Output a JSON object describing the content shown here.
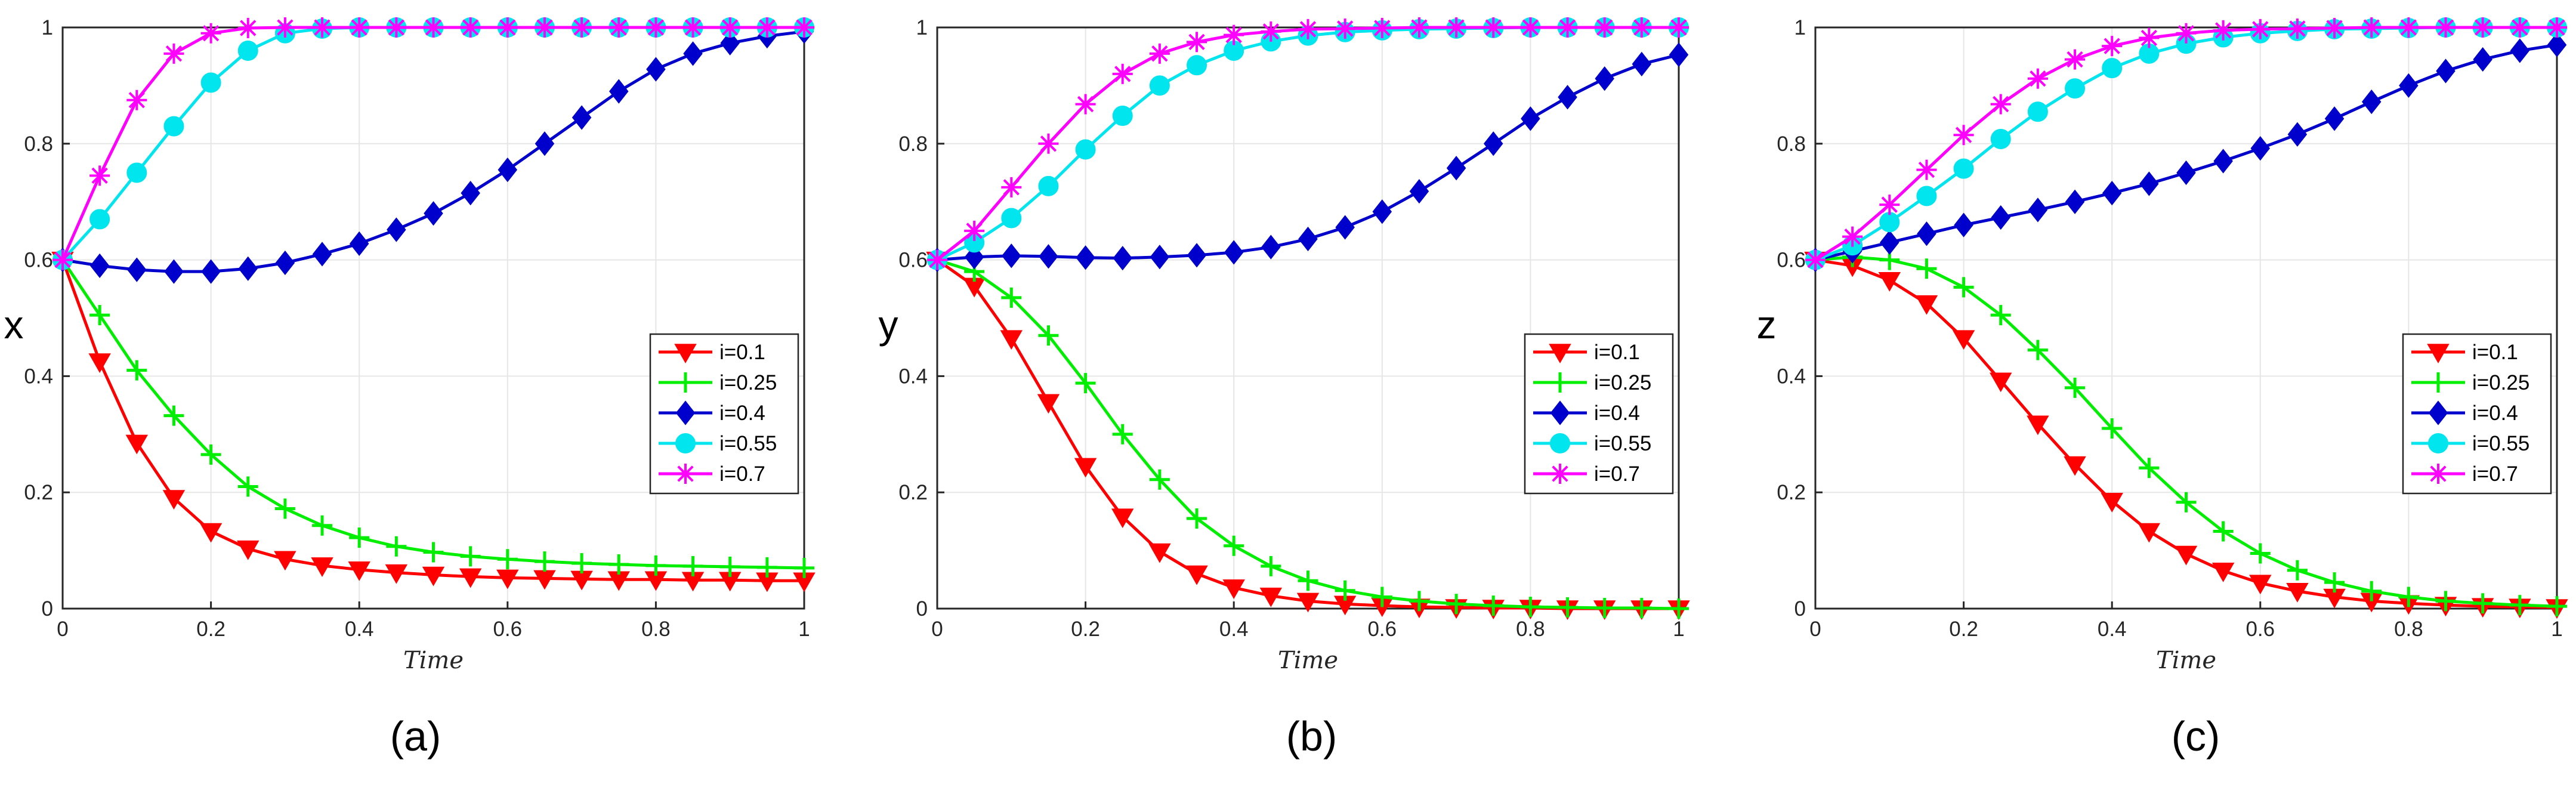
{
  "figure_title": "",
  "colors": {
    "i=0.1": "#ff0000",
    "i=0.25": "#00ee00",
    "i=0.4": "#0000cc",
    "i=0.55": "#00e5ee",
    "i=0.7": "#ff00ff"
  },
  "chart_data": [
    {
      "type": "line",
      "caption": "(a)",
      "title": "",
      "xlabel": "Time",
      "ylabel": "x",
      "xlim": [
        0,
        1
      ],
      "ylim": [
        0,
        1
      ],
      "xticks": [
        "0",
        "0.2",
        "0.4",
        "0.6",
        "0.8",
        "1"
      ],
      "yticks": [
        "0",
        "0.2",
        "0.4",
        "0.6",
        "0.8",
        "1"
      ],
      "grid": true,
      "legend_position": "center-right",
      "x": [
        0,
        0.05,
        0.1,
        0.15,
        0.2,
        0.25,
        0.3,
        0.35,
        0.4,
        0.45,
        0.5,
        0.55,
        0.6,
        0.65,
        0.7,
        0.75,
        0.8,
        0.85,
        0.9,
        0.95,
        1.0
      ],
      "series": [
        {
          "name": "i=0.1",
          "marker": "triangle-down",
          "values": [
            0.6,
            0.425,
            0.285,
            0.19,
            0.133,
            0.103,
            0.085,
            0.074,
            0.067,
            0.062,
            0.058,
            0.055,
            0.053,
            0.052,
            0.051,
            0.05,
            0.05,
            0.049,
            0.049,
            0.048,
            0.048
          ]
        },
        {
          "name": "i=0.25",
          "marker": "plus",
          "values": [
            0.6,
            0.505,
            0.41,
            0.332,
            0.265,
            0.21,
            0.172,
            0.143,
            0.122,
            0.107,
            0.097,
            0.09,
            0.085,
            0.081,
            0.078,
            0.076,
            0.074,
            0.073,
            0.072,
            0.071,
            0.07
          ]
        },
        {
          "name": "i=0.4",
          "marker": "diamond",
          "values": [
            0.6,
            0.59,
            0.583,
            0.58,
            0.58,
            0.585,
            0.595,
            0.61,
            0.628,
            0.652,
            0.68,
            0.715,
            0.755,
            0.8,
            0.845,
            0.89,
            0.928,
            0.955,
            0.973,
            0.985,
            0.993
          ]
        },
        {
          "name": "i=0.55",
          "marker": "circle",
          "values": [
            0.6,
            0.67,
            0.75,
            0.83,
            0.905,
            0.96,
            0.99,
            0.998,
            1.0,
            1.0,
            1.0,
            1.0,
            1.0,
            1.0,
            1.0,
            1.0,
            1.0,
            1.0,
            1.0,
            1.0,
            1.0
          ]
        },
        {
          "name": "i=0.7",
          "marker": "asterisk",
          "values": [
            0.6,
            0.745,
            0.875,
            0.955,
            0.99,
            0.999,
            1.0,
            1.0,
            1.0,
            1.0,
            1.0,
            1.0,
            1.0,
            1.0,
            1.0,
            1.0,
            1.0,
            1.0,
            1.0,
            1.0,
            1.0
          ]
        }
      ]
    },
    {
      "type": "line",
      "caption": "(b)",
      "title": "",
      "xlabel": "Time",
      "ylabel": "y",
      "xlim": [
        0,
        1
      ],
      "ylim": [
        0,
        1
      ],
      "xticks": [
        "0",
        "0.2",
        "0.4",
        "0.6",
        "0.8",
        "1"
      ],
      "yticks": [
        "0",
        "0.2",
        "0.4",
        "0.6",
        "0.8",
        "1"
      ],
      "grid": true,
      "legend_position": "center-right",
      "x": [
        0,
        0.05,
        0.1,
        0.15,
        0.2,
        0.25,
        0.3,
        0.35,
        0.4,
        0.45,
        0.5,
        0.55,
        0.6,
        0.65,
        0.7,
        0.75,
        0.8,
        0.85,
        0.9,
        0.95,
        1.0
      ],
      "series": [
        {
          "name": "i=0.1",
          "marker": "triangle-down",
          "values": [
            0.6,
            0.555,
            0.465,
            0.355,
            0.245,
            0.158,
            0.098,
            0.06,
            0.036,
            0.022,
            0.013,
            0.008,
            0.005,
            0.003,
            0.002,
            0.001,
            0.001,
            0.0,
            0.0,
            0.0,
            0.0
          ]
        },
        {
          "name": "i=0.25",
          "marker": "plus",
          "values": [
            0.6,
            0.58,
            0.535,
            0.47,
            0.388,
            0.3,
            0.222,
            0.155,
            0.108,
            0.073,
            0.048,
            0.031,
            0.02,
            0.013,
            0.008,
            0.005,
            0.003,
            0.002,
            0.001,
            0.001,
            0.0
          ]
        },
        {
          "name": "i=0.4",
          "marker": "diamond",
          "values": [
            0.6,
            0.605,
            0.607,
            0.606,
            0.604,
            0.603,
            0.605,
            0.608,
            0.613,
            0.622,
            0.636,
            0.656,
            0.683,
            0.718,
            0.758,
            0.8,
            0.843,
            0.88,
            0.912,
            0.937,
            0.953
          ]
        },
        {
          "name": "i=0.55",
          "marker": "circle",
          "values": [
            0.6,
            0.63,
            0.672,
            0.727,
            0.79,
            0.848,
            0.9,
            0.935,
            0.96,
            0.976,
            0.986,
            0.992,
            0.995,
            0.997,
            0.998,
            0.999,
            1.0,
            1.0,
            1.0,
            1.0,
            1.0
          ]
        },
        {
          "name": "i=0.7",
          "marker": "asterisk",
          "values": [
            0.6,
            0.65,
            0.725,
            0.8,
            0.868,
            0.92,
            0.955,
            0.975,
            0.987,
            0.993,
            0.997,
            0.998,
            0.999,
            1.0,
            1.0,
            1.0,
            1.0,
            1.0,
            1.0,
            1.0,
            1.0
          ]
        }
      ]
    },
    {
      "type": "line",
      "caption": "(c)",
      "title": "",
      "xlabel": "Time",
      "ylabel": "z",
      "xlim": [
        0,
        1
      ],
      "ylim": [
        0,
        1
      ],
      "xticks": [
        "0",
        "0.2",
        "0.4",
        "0.6",
        "0.8",
        "1"
      ],
      "yticks": [
        "0",
        "0.2",
        "0.4",
        "0.6",
        "0.8",
        "1"
      ],
      "grid": true,
      "legend_position": "center-right",
      "x": [
        0,
        0.05,
        0.1,
        0.15,
        0.2,
        0.25,
        0.3,
        0.35,
        0.4,
        0.45,
        0.5,
        0.55,
        0.6,
        0.65,
        0.7,
        0.75,
        0.8,
        0.85,
        0.9,
        0.95,
        1.0
      ],
      "series": [
        {
          "name": "i=0.1",
          "marker": "triangle-down",
          "values": [
            0.6,
            0.59,
            0.565,
            0.525,
            0.465,
            0.392,
            0.318,
            0.248,
            0.185,
            0.133,
            0.094,
            0.065,
            0.044,
            0.03,
            0.02,
            0.013,
            0.009,
            0.006,
            0.004,
            0.003,
            0.002
          ]
        },
        {
          "name": "i=0.25",
          "marker": "plus",
          "values": [
            0.6,
            0.605,
            0.6,
            0.585,
            0.553,
            0.505,
            0.445,
            0.38,
            0.31,
            0.242,
            0.183,
            0.133,
            0.095,
            0.066,
            0.045,
            0.03,
            0.02,
            0.013,
            0.009,
            0.006,
            0.004
          ]
        },
        {
          "name": "i=0.4",
          "marker": "diamond",
          "values": [
            0.6,
            0.615,
            0.63,
            0.645,
            0.66,
            0.673,
            0.686,
            0.7,
            0.715,
            0.731,
            0.75,
            0.77,
            0.792,
            0.816,
            0.843,
            0.872,
            0.9,
            0.925,
            0.945,
            0.96,
            0.97
          ]
        },
        {
          "name": "i=0.55",
          "marker": "circle",
          "values": [
            0.6,
            0.625,
            0.665,
            0.71,
            0.757,
            0.808,
            0.855,
            0.895,
            0.93,
            0.955,
            0.972,
            0.983,
            0.99,
            0.994,
            0.997,
            0.998,
            0.999,
            1.0,
            1.0,
            1.0,
            1.0
          ]
        },
        {
          "name": "i=0.7",
          "marker": "asterisk",
          "values": [
            0.6,
            0.64,
            0.695,
            0.755,
            0.815,
            0.868,
            0.912,
            0.945,
            0.968,
            0.982,
            0.99,
            0.995,
            0.997,
            0.998,
            0.999,
            1.0,
            1.0,
            1.0,
            1.0,
            1.0,
            1.0
          ]
        }
      ]
    }
  ]
}
